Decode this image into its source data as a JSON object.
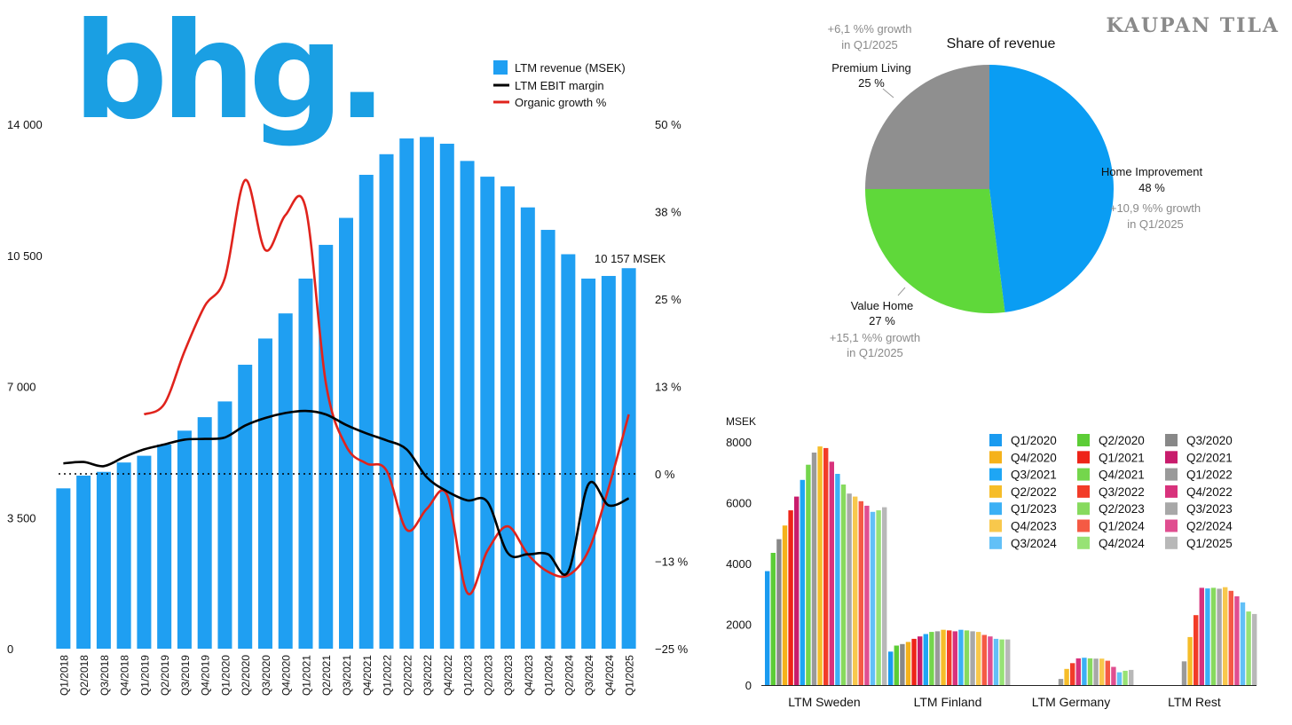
{
  "brand": "KAUPAN TILA",
  "logo_text": "bhg.",
  "colors": {
    "revenue_bar": "#1f9ff2",
    "ebit_line": "#000000",
    "growth_line": "#e0231c",
    "pie_home": "#0a9df3",
    "pie_value": "#5fd83a",
    "pie_premium": "#8f8f8f"
  },
  "chart_data": [
    {
      "type": "bar",
      "title": "",
      "categories": [
        "Q1/2018",
        "Q2/2018",
        "Q3/2018",
        "Q4/2018",
        "Q1/2019",
        "Q2/2019",
        "Q3/2019",
        "Q4/2019",
        "Q1/2020",
        "Q2/2020",
        "Q3/2020",
        "Q4/2020",
        "Q1/2021",
        "Q2/2021",
        "Q3/2021",
        "Q4/2021",
        "Q1/2022",
        "Q2/2022",
        "Q3/2022",
        "Q4/2022",
        "Q1/2023",
        "Q2/2023",
        "Q3/2023",
        "Q4/2023",
        "Q1/2024",
        "Q2/2024",
        "Q3/2024",
        "Q4/2024",
        "Q1/2025"
      ],
      "yticks": [
        "0",
        "3 500",
        "7 000",
        "10 500",
        "14 000"
      ],
      "y2ticks": [
        "−25 %",
        "−13 %",
        "0 %",
        "13 %",
        "25 %",
        "38 %",
        "50 %"
      ],
      "ylim": [
        0,
        14000
      ],
      "y2lim": [
        -25,
        50
      ],
      "annotation": "10 157 MSEK",
      "legend_position": "top",
      "series": [
        {
          "name": "LTM revenue (MSEK)",
          "type": "bar",
          "values": [
            4280,
            4620,
            4720,
            4970,
            5150,
            5450,
            5820,
            6180,
            6600,
            7580,
            8280,
            8950,
            9880,
            10780,
            11500,
            12650,
            13200,
            13620,
            13660,
            13480,
            13020,
            12600,
            12340,
            11780,
            11180,
            10530,
            9880,
            9950,
            10157
          ]
        },
        {
          "name": "LTM EBIT margin",
          "type": "line",
          "axis": "right",
          "values": [
            1.5,
            1.7,
            1.1,
            2.4,
            3.5,
            4.2,
            4.9,
            5.0,
            5.2,
            6.9,
            8.0,
            8.7,
            9.0,
            8.5,
            7.0,
            5.8,
            4.8,
            3.5,
            -0.5,
            -2.5,
            -3.8,
            -4.0,
            -11.3,
            -11.5,
            -11.5,
            -14.0,
            -1.5,
            -4.5,
            -3.5
          ]
        },
        {
          "name": "Organic growth %",
          "type": "line",
          "axis": "right",
          "values": [
            null,
            null,
            null,
            null,
            8.5,
            10,
            17.5,
            24,
            28,
            42,
            32,
            37,
            38,
            13,
            4,
            1.5,
            0.5,
            -8,
            -5,
            -3,
            -17,
            -11,
            -7.5,
            -11.5,
            -14,
            -14.5,
            -11,
            -2,
            8.5
          ]
        }
      ]
    },
    {
      "type": "pie",
      "title": "Share of revenue",
      "slices": [
        {
          "label": "Home Improvement",
          "pct": "48 %",
          "value": 48,
          "note1": "+10,9 %% growth",
          "note2": "in Q1/2025"
        },
        {
          "label": "Value Home",
          "pct": "27 %",
          "value": 27,
          "note1": "+15,1 %% growth",
          "note2": "in Q1/2025"
        },
        {
          "label": "Premium Living",
          "pct": "25 %",
          "value": 25,
          "note1": "+6,1 %% growth",
          "note2": "in Q1/2025"
        }
      ]
    },
    {
      "type": "bar",
      "title": "",
      "ylabel": "MSEK",
      "yticks": [
        "0",
        "2000",
        "4000",
        "6000",
        "8000"
      ],
      "ylim": [
        0,
        8000
      ],
      "legend_position": "top-right",
      "series_names": [
        "Q1/2020",
        "Q2/2020",
        "Q3/2020",
        "Q4/2020",
        "Q1/2021",
        "Q2/2021",
        "Q3/2021",
        "Q4/2021",
        "Q1/2022",
        "Q2/2022",
        "Q3/2022",
        "Q4/2022",
        "Q1/2023",
        "Q2/2023",
        "Q3/2023",
        "Q4/2023",
        "Q1/2024",
        "Q2/2024",
        "Q3/2024",
        "Q4/2024",
        "Q1/2025"
      ],
      "series_colors": [
        "#1a9bf0",
        "#5ccd36",
        "#888888",
        "#f5b21b",
        "#ee2418",
        "#c81c6c",
        "#1ea6f5",
        "#74d64c",
        "#9a9a9a",
        "#f6bd29",
        "#f23c28",
        "#d8327c",
        "#3bb0f5",
        "#87da5e",
        "#a8a8a8",
        "#f8c84c",
        "#f55a44",
        "#e04e90",
        "#62c0f7",
        "#97e275",
        "#b8b8b8"
      ],
      "groups": [
        {
          "name": "LTM Sweden",
          "values": [
            3750,
            4350,
            4800,
            5250,
            5750,
            6200,
            6750,
            7250,
            7650,
            7850,
            7800,
            7350,
            6950,
            6600,
            6300,
            6200,
            6050,
            5900,
            5700,
            5750,
            5850
          ]
        },
        {
          "name": "LTM Finland",
          "values": [
            1100,
            1300,
            1350,
            1420,
            1520,
            1600,
            1680,
            1750,
            1770,
            1820,
            1800,
            1770,
            1820,
            1800,
            1770,
            1750,
            1650,
            1600,
            1520,
            1500,
            1500
          ]
        },
        {
          "name": "LTM Germany",
          "values": [
            0,
            0,
            0,
            0,
            0,
            0,
            0,
            0,
            200,
            530,
            720,
            880,
            900,
            880,
            870,
            870,
            800,
            600,
            420,
            470,
            500
          ]
        },
        {
          "name": "LTM Rest",
          "values": [
            0,
            0,
            0,
            0,
            0,
            0,
            0,
            0,
            780,
            1580,
            2300,
            3200,
            3180,
            3200,
            3170,
            3220,
            3100,
            2920,
            2720,
            2420,
            2340
          ]
        }
      ]
    }
  ]
}
